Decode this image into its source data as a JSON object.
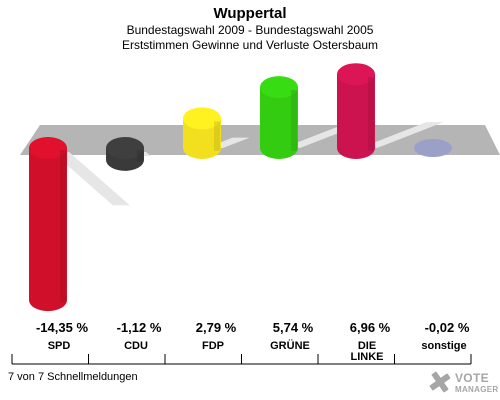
{
  "chart_data": {
    "type": "bar",
    "title": "Wuppertal",
    "subtitle_1": "Bundestagswahl 2009 - Bundestagswahl 2005",
    "subtitle_2": "Erststimmen Gewinne und Verluste Ostersbaum",
    "categories": [
      "SPD",
      "CDU",
      "FDP",
      "GRÜNE",
      "DIE LINKE",
      "sonstige"
    ],
    "category_lines": [
      [
        "SPD"
      ],
      [
        "CDU"
      ],
      [
        "FDP"
      ],
      [
        "GRÜNE"
      ],
      [
        "DIE",
        "LINKE"
      ],
      [
        "sonstige"
      ]
    ],
    "values": [
      -14.35,
      -1.12,
      2.79,
      5.74,
      6.96,
      -0.02
    ],
    "value_labels": [
      "-14,35 %",
      "-1,12 %",
      "2,79 %",
      "5,74 %",
      "6,96 %",
      "-0,02 %"
    ],
    "colors": [
      "#d0102a",
      "#3a3a3a",
      "#f2e01e",
      "#33cc11",
      "#cc1350",
      "#9aa0c8"
    ]
  },
  "footer": {
    "text": "7 von 7 Schnellmeldungen"
  },
  "logo": {
    "line1": "VOTE",
    "line2": "MANAGER"
  }
}
